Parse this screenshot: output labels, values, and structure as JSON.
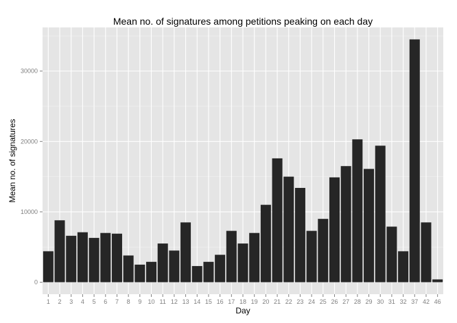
{
  "chart_data": {
    "type": "bar",
    "title": "Mean no. of signatures among petitions peaking on each day",
    "xlabel": "Day",
    "ylabel": "Mean no. of signatures",
    "categories": [
      "1",
      "2",
      "3",
      "4",
      "5",
      "6",
      "7",
      "8",
      "9",
      "10",
      "11",
      "12",
      "13",
      "14",
      "15",
      "16",
      "17",
      "18",
      "19",
      "20",
      "21",
      "22",
      "23",
      "24",
      "25",
      "26",
      "27",
      "28",
      "29",
      "30",
      "31",
      "32",
      "37",
      "42",
      "46"
    ],
    "values": [
      4400,
      8800,
      6600,
      7100,
      6300,
      7000,
      6900,
      3800,
      2500,
      2900,
      5500,
      4500,
      8500,
      2300,
      2900,
      3900,
      7300,
      5500,
      7000,
      11000,
      17600,
      15000,
      13400,
      7300,
      9000,
      14900,
      16500,
      20300,
      16100,
      19400,
      7900,
      4400,
      34500,
      8500,
      400
    ],
    "y_ticks": [
      0,
      10000,
      20000,
      30000
    ],
    "y_tick_labels": [
      "0",
      "10000",
      "20000",
      "30000"
    ],
    "ylim": [
      -1700,
      36200
    ],
    "grid": true,
    "colors": {
      "bar": "#262626",
      "panel": "#e5e5e5",
      "grid_major": "#ffffff",
      "grid_minor": "#f2f2f2"
    }
  }
}
